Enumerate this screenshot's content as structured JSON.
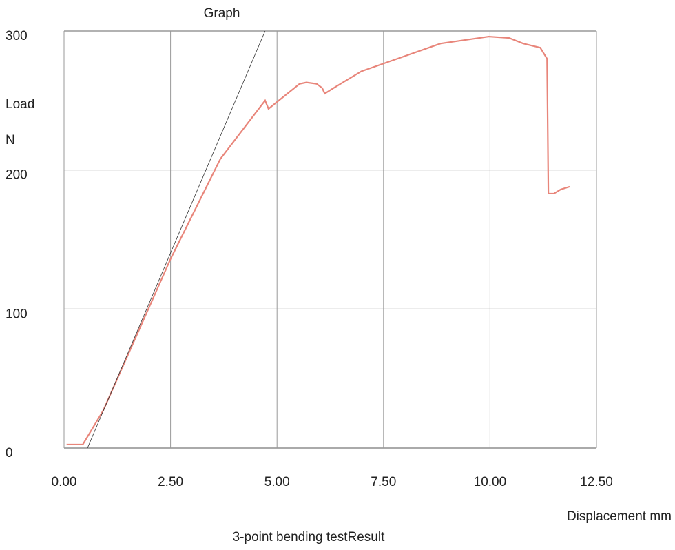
{
  "chart_data": {
    "type": "line",
    "title": "Graph",
    "y_label_1": "Load",
    "y_label_2": "N",
    "x_label": "Displacement  mm",
    "caption": "3-point bending testResult",
    "xlim": [
      0,
      12.5
    ],
    "ylim": [
      0,
      300
    ],
    "xticks": [
      {
        "value": 0,
        "label": "0.00"
      },
      {
        "value": 2.5,
        "label": "2.50"
      },
      {
        "value": 5,
        "label": "5.00"
      },
      {
        "value": 7.5,
        "label": "7.50"
      },
      {
        "value": 10,
        "label": "10.00"
      },
      {
        "value": 12.5,
        "label": "12.50"
      }
    ],
    "yticks": [
      0,
      100,
      200,
      300
    ],
    "grid": true,
    "series": [
      {
        "color": "#e8857a",
        "x": [
          0.06,
          0.44,
          0.92,
          2.5,
          3.67,
          4.72,
          4.8,
          4.96,
          5.53,
          5.69,
          5.93,
          6.06,
          6.12,
          6.33,
          6.98,
          7.54,
          8.84,
          9.97,
          10.45,
          10.78,
          11.18,
          11.34,
          11.37,
          11.5,
          11.66,
          11.87
        ],
        "values": [
          2.5,
          2.5,
          27,
          136,
          208,
          250,
          244,
          248,
          262,
          263,
          262,
          259,
          255,
          259,
          271,
          277,
          291,
          296,
          295,
          291,
          288,
          280,
          183,
          183,
          186,
          188
        ]
      },
      {
        "color": "#333333",
        "x": [
          0.55,
          4.72
        ],
        "values": [
          0,
          300
        ]
      }
    ]
  }
}
